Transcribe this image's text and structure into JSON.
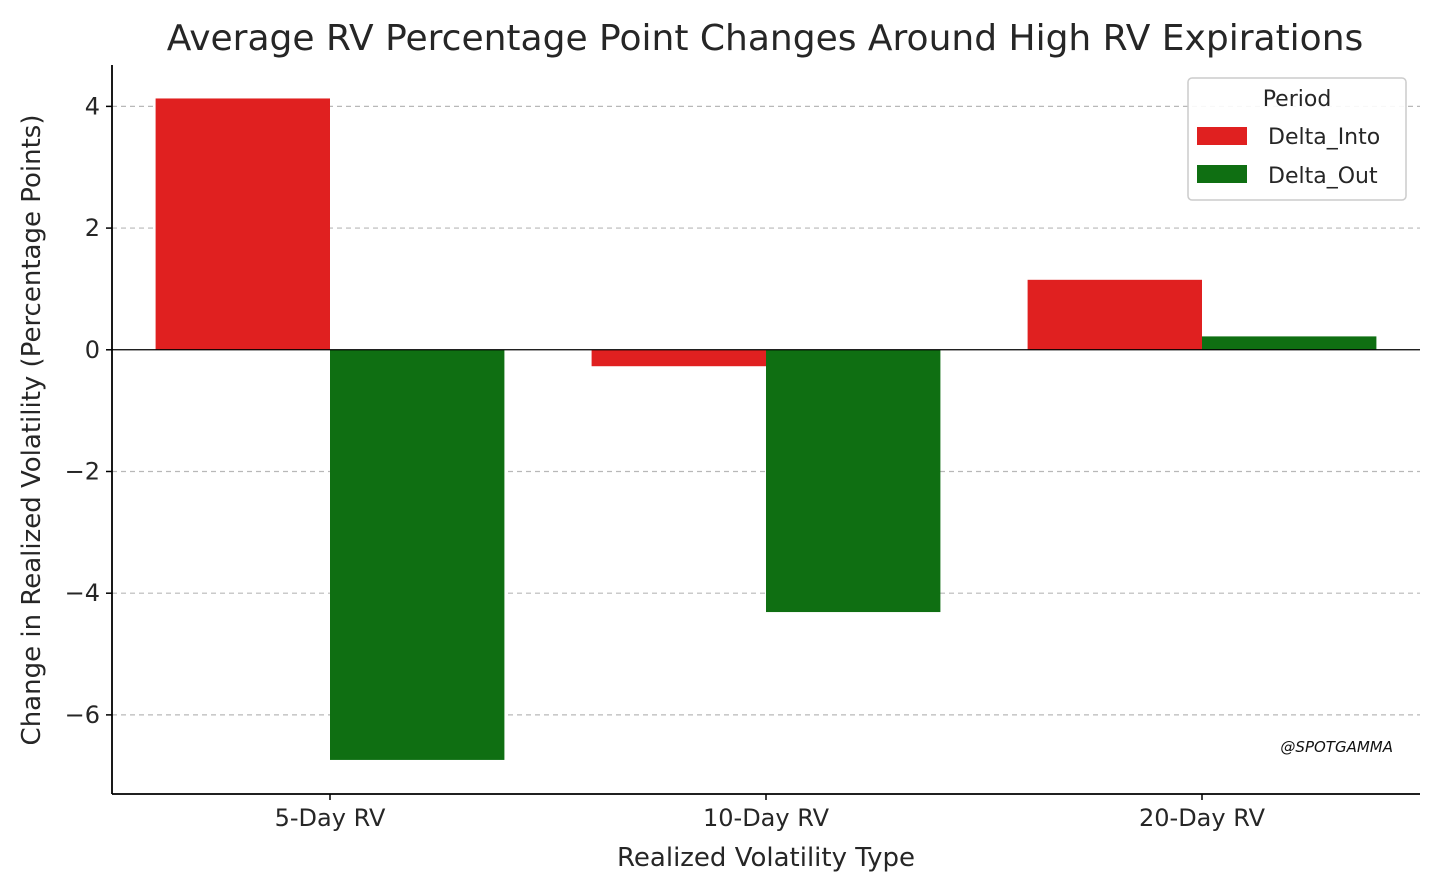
{
  "chart_data": {
    "type": "bar",
    "title": "Average RV Percentage Point Changes Around High RV Expirations",
    "xlabel": "Realized Volatility Type",
    "ylabel": "Change in Realized Volatility (Percentage Points)",
    "categories": [
      "5-Day RV",
      "10-Day RV",
      "20-Day RV"
    ],
    "series": [
      {
        "name": "Delta_Into",
        "values": [
          4.13,
          -0.27,
          1.15
        ],
        "color": "#e02020"
      },
      {
        "name": "Delta_Out",
        "values": [
          -6.74,
          -4.31,
          0.22
        ],
        "color": "#0f6f12"
      }
    ],
    "ylim": [
      -7.3,
      4.68
    ],
    "yticks": [
      -6,
      -4,
      -2,
      0,
      2,
      4
    ],
    "ytick_labels": [
      "−6",
      "−4",
      "−2",
      "0",
      "2",
      "4"
    ],
    "grid": "y-dashed",
    "legend": {
      "title": "Period",
      "placement": "top-right"
    },
    "annotation": "@SPOTGAMMA"
  }
}
